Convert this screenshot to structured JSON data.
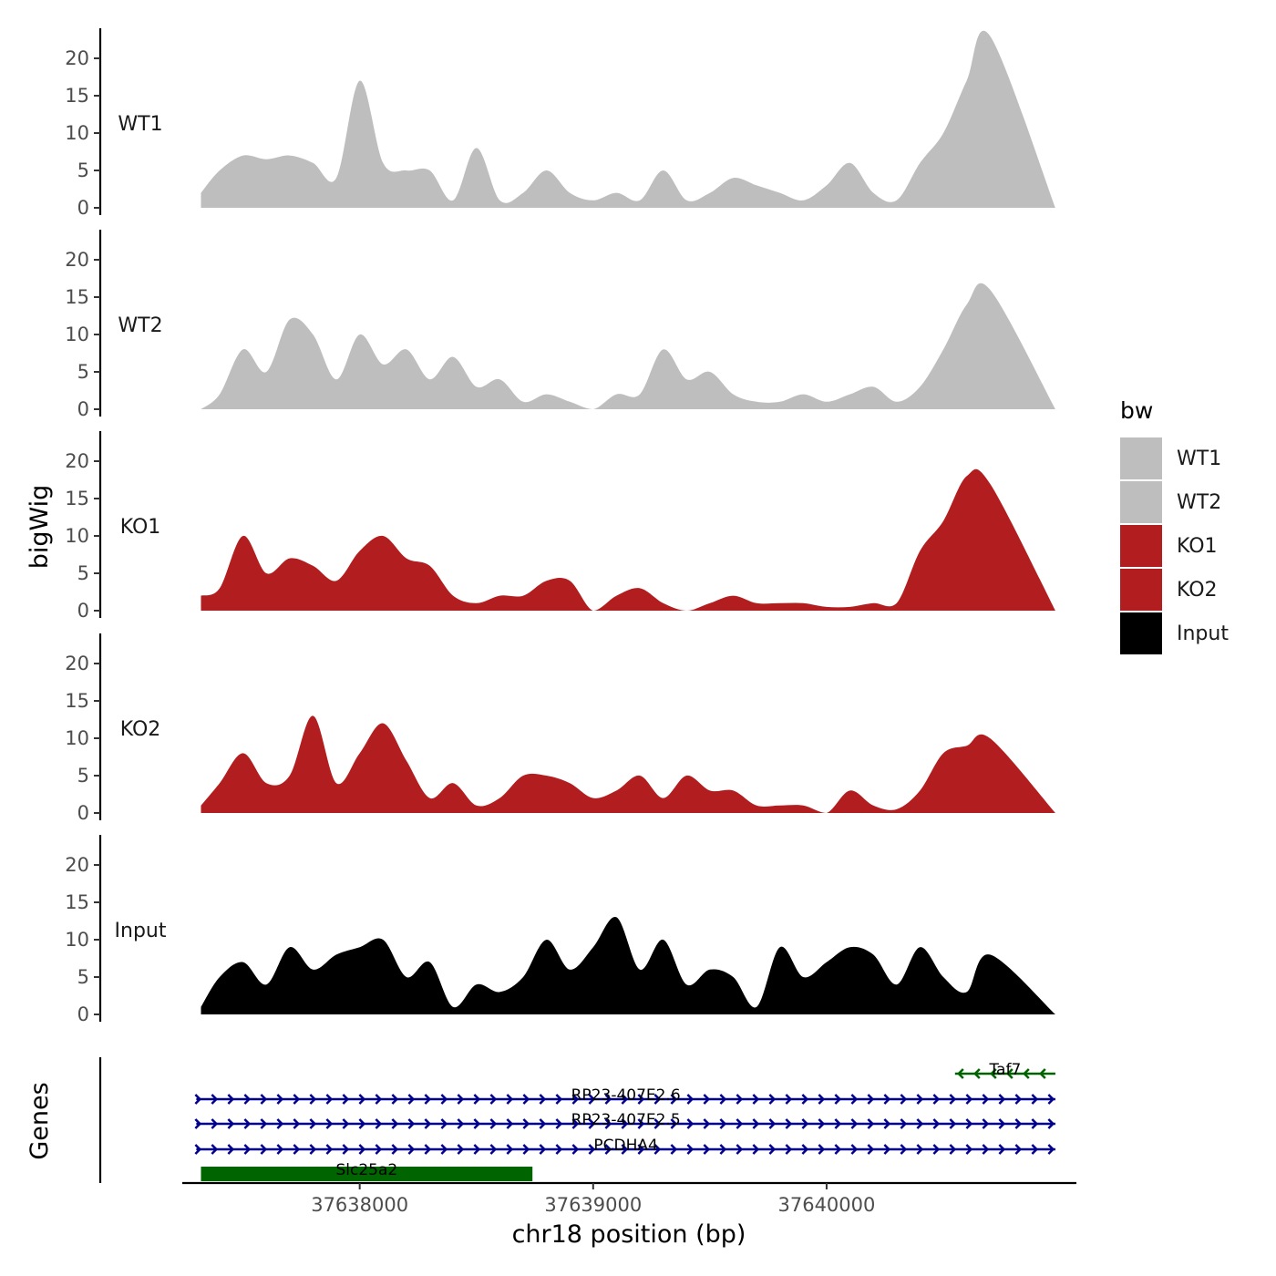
{
  "chart_data": {
    "type": "area",
    "ylabel": "bigWig",
    "xlabel": "chr18 position (bp)",
    "ylim": [
      0,
      24
    ],
    "yticks": [
      0,
      5,
      10,
      15,
      20
    ],
    "xlim": [
      37637240,
      37641070
    ],
    "xticks": [
      37638000,
      37639000,
      37640000
    ],
    "xtick_labels": [
      "37638000",
      "37639000",
      "37640000"
    ],
    "legend": {
      "title": "bw",
      "position": "right",
      "items": [
        {
          "label": "WT1",
          "color": "#bebebe"
        },
        {
          "label": "WT2",
          "color": "#bebebe"
        },
        {
          "label": "KO1",
          "color": "#b21e1f"
        },
        {
          "label": "KO2",
          "color": "#b21e1f"
        },
        {
          "label": "Input",
          "color": "#000000"
        }
      ]
    },
    "x": [
      37637320,
      37637400,
      37637500,
      37637600,
      37637700,
      37637800,
      37637900,
      37638000,
      37638100,
      37638200,
      37638300,
      37638400,
      37638500,
      37638600,
      37638700,
      37638800,
      37638900,
      37639000,
      37639100,
      37639200,
      37639300,
      37639400,
      37639500,
      37639600,
      37639700,
      37639800,
      37639900,
      37640000,
      37640100,
      37640200,
      37640300,
      37640400,
      37640500,
      37640600,
      37640700,
      37640980
    ],
    "series": [
      {
        "name": "WT1",
        "color": "#bebebe",
        "values": [
          2,
          5,
          7,
          6.5,
          7,
          6,
          4,
          17,
          6,
          5,
          5,
          1,
          8,
          1,
          2,
          5,
          2,
          1,
          2,
          1,
          5,
          1,
          2,
          4,
          3,
          2,
          1,
          3,
          6,
          2,
          1,
          6,
          10,
          17,
          23,
          0
        ]
      },
      {
        "name": "WT2",
        "color": "#bebebe",
        "values": [
          0,
          2,
          8,
          5,
          12,
          10,
          4,
          10,
          6,
          8,
          4,
          7,
          3,
          4,
          1,
          2,
          1,
          0,
          2,
          2,
          8,
          4,
          5,
          2,
          1,
          1,
          2,
          1,
          2,
          3,
          1,
          3,
          8,
          14,
          16,
          0
        ]
      },
      {
        "name": "KO1",
        "color": "#b21e1f",
        "values": [
          2,
          3,
          10,
          5,
          7,
          6,
          4,
          8,
          10,
          7,
          6,
          2,
          1,
          2,
          2,
          4,
          4,
          0,
          2,
          3,
          1,
          0,
          1,
          2,
          1,
          1,
          1,
          0.5,
          0.5,
          1,
          1,
          8,
          12,
          18,
          17,
          0
        ]
      },
      {
        "name": "KO2",
        "color": "#b21e1f",
        "values": [
          1,
          4,
          8,
          4,
          5,
          13,
          4,
          8,
          12,
          7,
          2,
          4,
          1,
          2,
          5,
          5,
          4,
          2,
          3,
          5,
          2,
          5,
          3,
          3,
          1,
          1,
          1,
          0,
          3,
          1,
          0.5,
          3,
          8,
          9,
          10,
          0
        ]
      },
      {
        "name": "Input",
        "color": "#000000",
        "values": [
          1,
          5,
          7,
          4,
          9,
          6,
          8,
          9,
          10,
          5,
          7,
          1,
          4,
          3,
          5,
          10,
          6,
          9,
          13,
          6,
          10,
          4,
          6,
          5,
          1,
          9,
          5,
          7,
          9,
          8,
          4,
          9,
          5,
          3,
          8,
          0
        ]
      }
    ],
    "genes_track": {
      "label": "Genes",
      "genes": [
        {
          "name": "Taf7",
          "start": 37640550,
          "end": 37640980,
          "strand": "-",
          "color": "#006400",
          "row": 0
        },
        {
          "name": "RP23-407E2.6",
          "start": 37637300,
          "end": 37640980,
          "strand": "+",
          "color": "#00008b",
          "row": 1
        },
        {
          "name": "RP23-407E2.5",
          "start": 37637300,
          "end": 37640980,
          "strand": "+",
          "color": "#00008b",
          "row": 2
        },
        {
          "name": "PCDHA4",
          "start": 37637300,
          "end": 37640980,
          "strand": "+",
          "color": "#00008b",
          "row": 3
        },
        {
          "name": "Slc25a2",
          "start": 37637320,
          "end": 37638740,
          "strand": "box",
          "color": "#006400",
          "row": 4
        }
      ]
    }
  }
}
